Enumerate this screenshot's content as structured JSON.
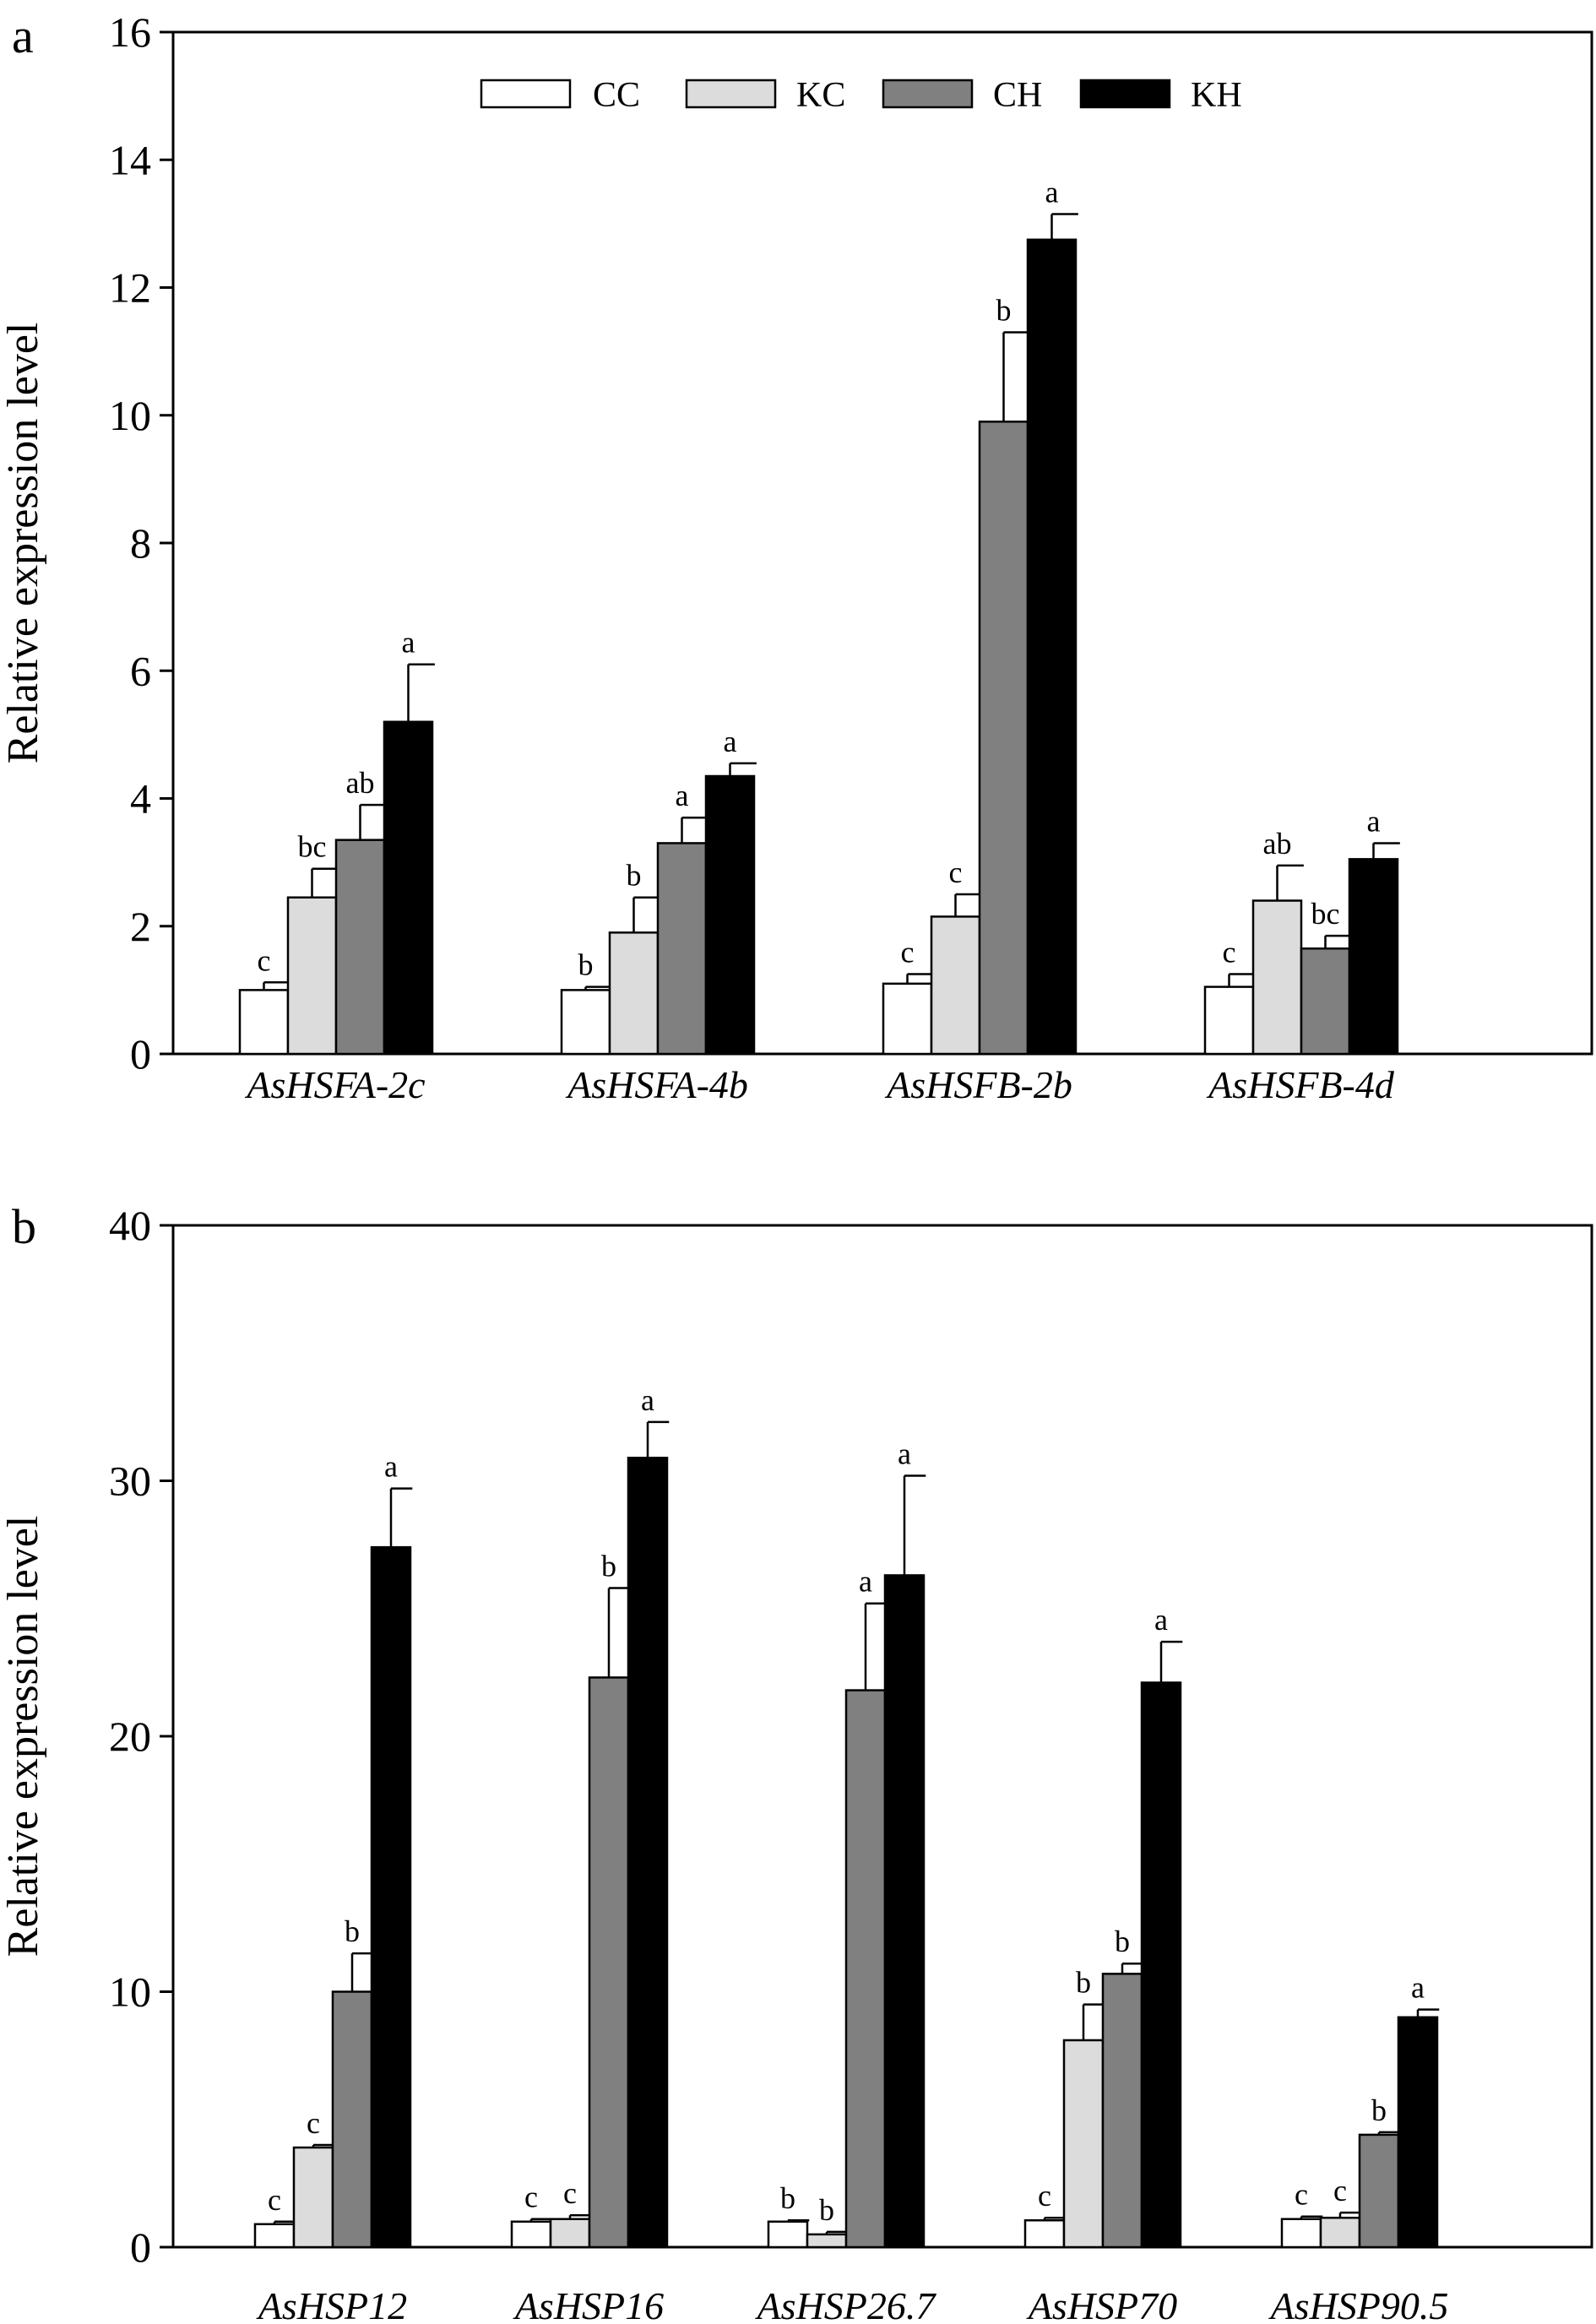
{
  "legend": [
    {
      "name": "CC",
      "color": "#ffffff"
    },
    {
      "name": "KC",
      "color": "#dcdcdc"
    },
    {
      "name": "CH",
      "color": "#808080"
    },
    {
      "name": "KH",
      "color": "#000000"
    }
  ],
  "chart_data": [
    {
      "panel": "a",
      "type": "bar",
      "ylabel": "Relative expression level",
      "ylim": [
        0,
        16
      ],
      "yticks": [
        0,
        2,
        4,
        6,
        8,
        10,
        12,
        14,
        16
      ],
      "categories": [
        "AsHSFA-2c",
        "AsHSFA-4b",
        "AsHSFB-2b",
        "AsHSFB-4d"
      ],
      "series": [
        {
          "name": "CC",
          "values": [
            1.0,
            1.0,
            1.1,
            1.05
          ],
          "errors": [
            0.12,
            0.05,
            0.15,
            0.2
          ],
          "labels": [
            "c",
            "b",
            "c",
            "c"
          ]
        },
        {
          "name": "KC",
          "values": [
            2.45,
            1.9,
            2.15,
            2.4
          ],
          "errors": [
            0.45,
            0.55,
            0.35,
            0.55
          ],
          "labels": [
            "bc",
            "b",
            "c",
            "ab"
          ]
        },
        {
          "name": "CH",
          "values": [
            3.35,
            3.3,
            9.9,
            1.65
          ],
          "errors": [
            0.55,
            0.4,
            1.4,
            0.2
          ],
          "labels": [
            "ab",
            "a",
            "b",
            "bc"
          ]
        },
        {
          "name": "KH",
          "values": [
            5.2,
            4.35,
            12.75,
            3.05
          ],
          "errors": [
            0.9,
            0.2,
            0.4,
            0.25
          ],
          "labels": [
            "a",
            "a",
            "a",
            "a"
          ]
        }
      ]
    },
    {
      "panel": "b",
      "type": "bar",
      "ylabel": "Relative expression level",
      "ylim": [
        0,
        40
      ],
      "yticks": [
        0,
        10,
        20,
        30,
        40
      ],
      "categories": [
        "AsHSP12",
        "AsHSP16",
        "AsHSP26.7",
        "AsHSP70",
        "AsHSP90.5"
      ],
      "series": [
        {
          "name": "CC",
          "values": [
            0.9,
            1.0,
            1.0,
            1.05,
            1.1
          ],
          "errors": [
            0.1,
            0.1,
            0.05,
            0.1,
            0.1
          ],
          "labels": [
            "c",
            "c",
            "b",
            "c",
            "c"
          ]
        },
        {
          "name": "KC",
          "values": [
            3.9,
            1.1,
            0.5,
            8.1,
            1.15
          ],
          "errors": [
            0.1,
            0.15,
            0.1,
            1.4,
            0.2
          ],
          "labels": [
            "c",
            "c",
            "b",
            "b",
            "c"
          ]
        },
        {
          "name": "CH",
          "values": [
            10.0,
            22.3,
            21.8,
            10.7,
            4.4
          ],
          "errors": [
            1.5,
            3.5,
            3.4,
            0.4,
            0.1
          ],
          "labels": [
            "b",
            "b",
            "a",
            "b",
            "b"
          ]
        },
        {
          "name": "KH",
          "values": [
            27.4,
            30.9,
            26.3,
            22.1,
            9.0
          ],
          "errors": [
            2.3,
            1.4,
            3.9,
            1.6,
            0.3
          ],
          "labels": [
            "a",
            "a",
            "a",
            "a",
            "a"
          ]
        }
      ]
    }
  ]
}
